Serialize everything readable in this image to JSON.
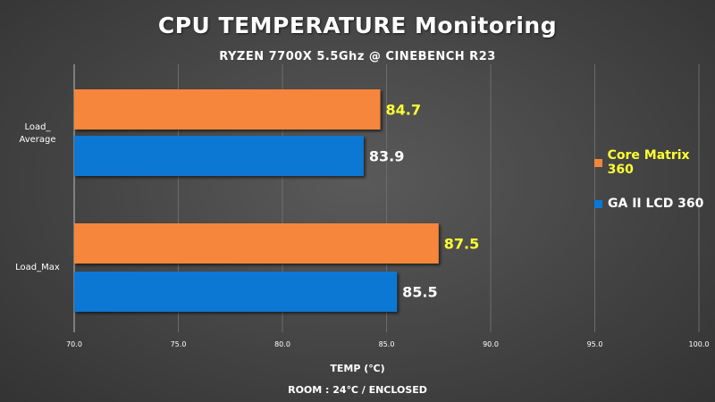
{
  "chart_data": {
    "type": "bar",
    "orientation": "horizontal",
    "title": "CPU TEMPERATURE Monitoring",
    "subtitle": "RYZEN 7700X 5.5Ghz @ CINEBENCH R23",
    "xlabel": "TEMP (℃)",
    "note": "ROOM : 24℃ / ENCLOSED",
    "categories": [
      "Load_\nAverage",
      "Load_Max"
    ],
    "xlim": [
      70,
      100
    ],
    "ticks": [
      "70.0",
      "75.0",
      "80.0",
      "85.0",
      "90.0",
      "95.0",
      "100.0"
    ],
    "grid": true,
    "legend_position": "right",
    "series": [
      {
        "name": "Core Matrix 360",
        "values": [
          84.7,
          87.5
        ],
        "color": "#f5863a",
        "label_color": "#ffff33"
      },
      {
        "name": "GA II LCD 360",
        "values": [
          83.9,
          85.5
        ],
        "color": "#0a78d4",
        "label_color": "#ffffff"
      }
    ]
  }
}
